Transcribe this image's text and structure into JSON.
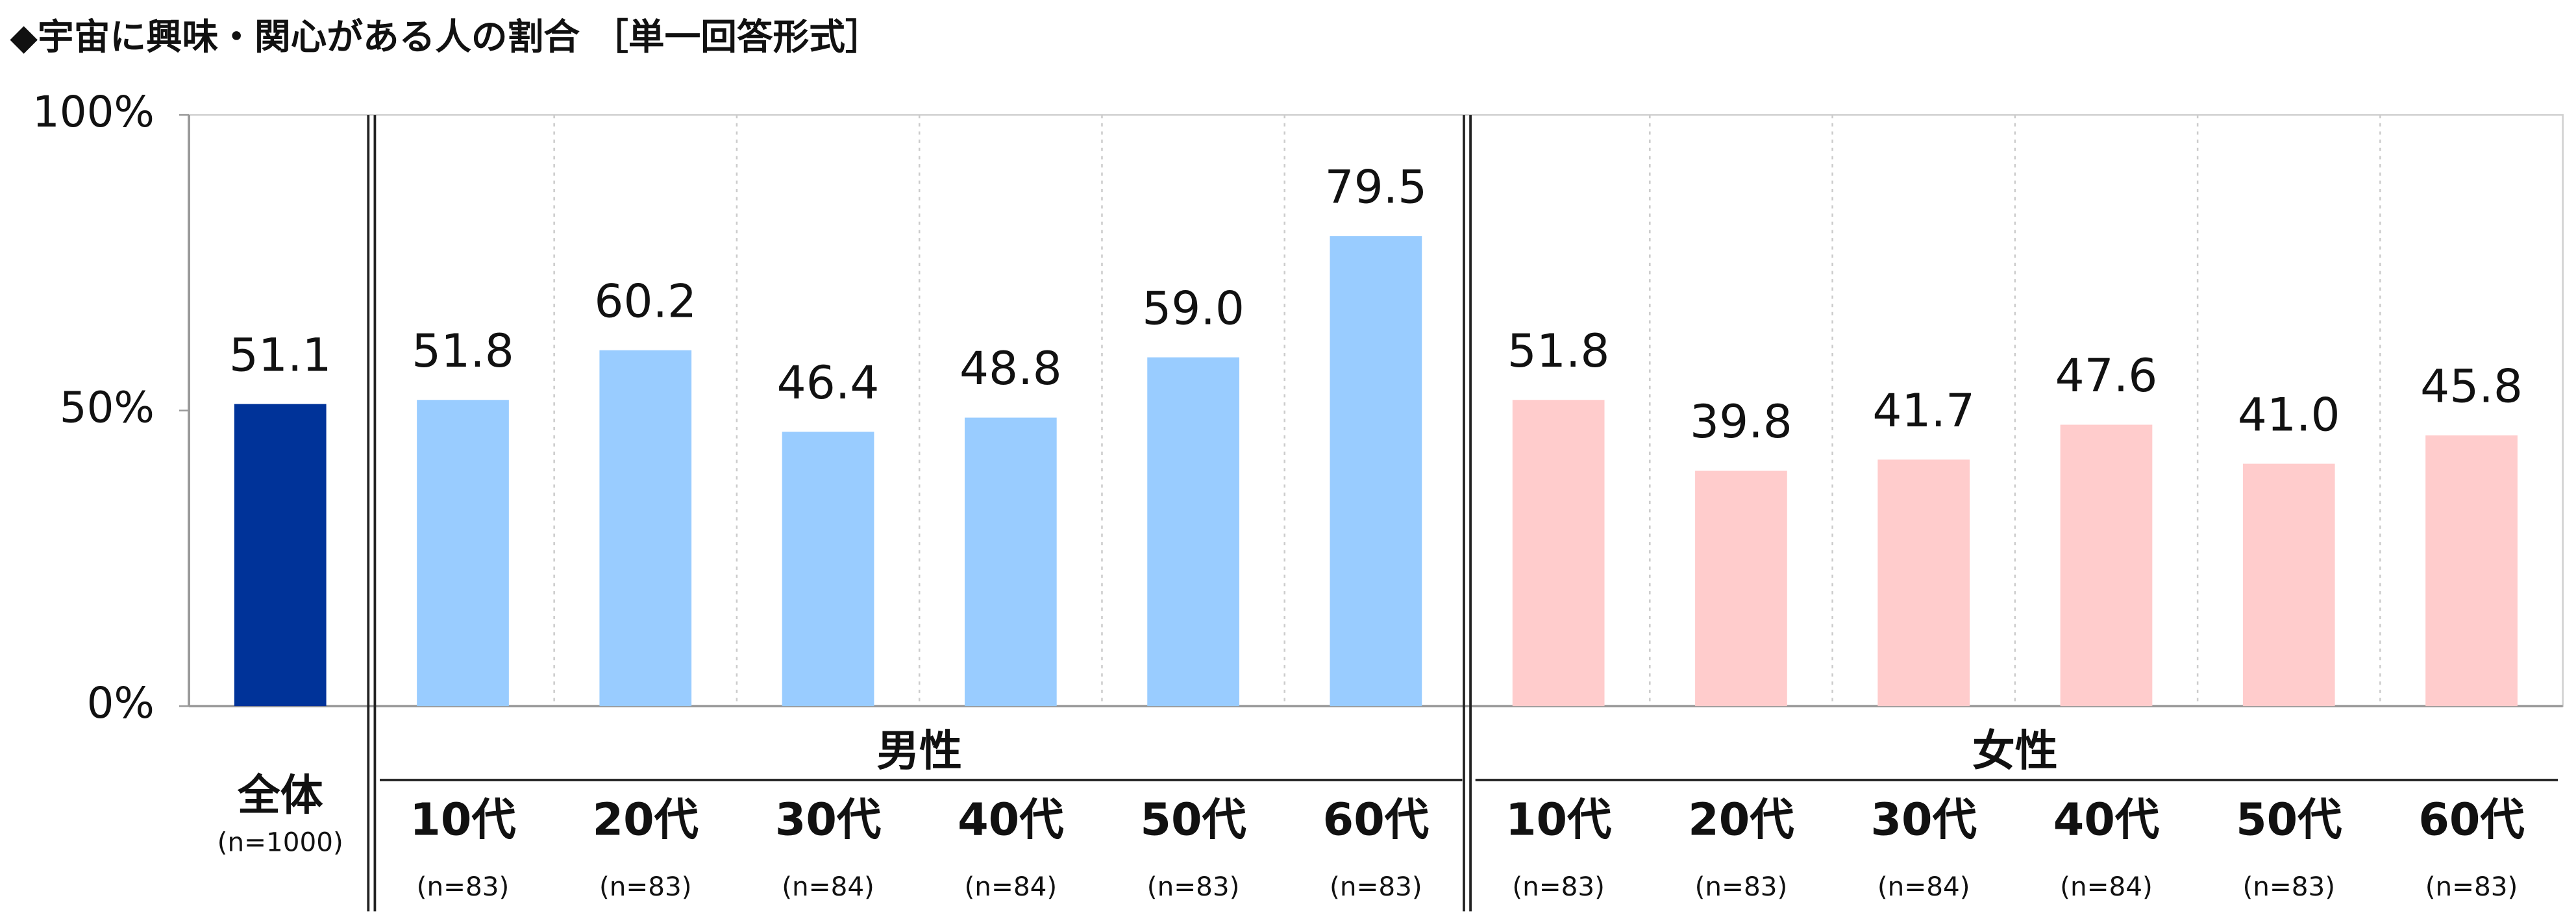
{
  "chart_data": {
    "type": "bar",
    "title": "◆宇宙に興味・関心がある人の割合 ［単一回答形式］",
    "ylim": [
      0,
      100
    ],
    "yticks": [
      {
        "value": 0,
        "label": "0%"
      },
      {
        "value": 50,
        "label": "50%"
      },
      {
        "value": 100,
        "label": "100%"
      }
    ],
    "total": {
      "category": "全体",
      "n": "(n=1000)",
      "value": 51.1,
      "value_label": "51.1",
      "color": "#003399"
    },
    "groups": [
      {
        "name": "男性",
        "color": "#99ccff",
        "categories": [
          "10代",
          "20代",
          "30代",
          "40代",
          "50代",
          "60代"
        ],
        "n": [
          "(n=83)",
          "(n=83)",
          "(n=84)",
          "(n=84)",
          "(n=83)",
          "(n=83)"
        ],
        "values": [
          51.8,
          60.2,
          46.4,
          48.8,
          59.0,
          79.5
        ],
        "value_labels": [
          "51.8",
          "60.2",
          "46.4",
          "48.8",
          "59.0",
          "79.5"
        ]
      },
      {
        "name": "女性",
        "color": "#ffcccc",
        "categories": [
          "10代",
          "20代",
          "30代",
          "40代",
          "50代",
          "60代"
        ],
        "n": [
          "(n=83)",
          "(n=83)",
          "(n=84)",
          "(n=84)",
          "(n=83)",
          "(n=83)"
        ],
        "values": [
          51.8,
          39.8,
          41.7,
          47.6,
          41.0,
          45.8
        ],
        "value_labels": [
          "51.8",
          "39.8",
          "41.7",
          "47.6",
          "41.0",
          "45.8"
        ]
      }
    ]
  }
}
